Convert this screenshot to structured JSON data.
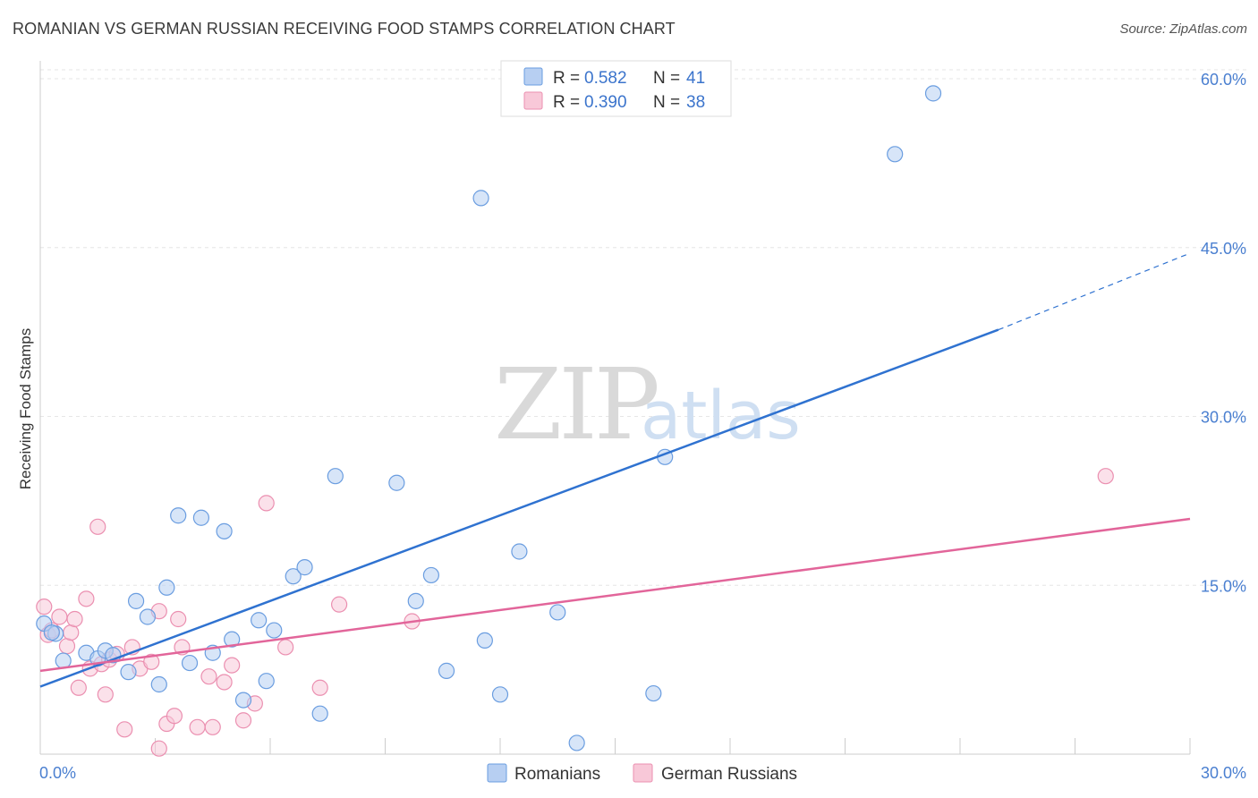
{
  "header": {
    "title": "ROMANIAN VS GERMAN RUSSIAN RECEIVING FOOD STAMPS CORRELATION CHART",
    "source": "Source: ZipAtlas.com"
  },
  "watermark": {
    "zip": "ZIP",
    "atlas": "atlas"
  },
  "chart_data": {
    "type": "scatter",
    "title": "ROMANIAN VS GERMAN RUSSIAN RECEIVING FOOD STAMPS CORRELATION CHART",
    "xlabel": "",
    "ylabel": "Receiving Food Stamps",
    "xlim": [
      0,
      30
    ],
    "ylim": [
      0,
      60
    ],
    "x_tick_labels": {
      "min": "0.0%",
      "max": "30.0%"
    },
    "y_ticks": [
      {
        "value": 15,
        "label": "15.0%"
      },
      {
        "value": 30,
        "label": "30.0%"
      },
      {
        "value": 45,
        "label": "45.0%"
      },
      {
        "value": 60,
        "label": "60.0%"
      }
    ],
    "legend": {
      "position": "top-center",
      "entries": [
        {
          "r_label": "R =",
          "r_value": "0.582",
          "n_label": "N =",
          "n_value": "41"
        },
        {
          "r_label": "R =",
          "r_value": "0.390",
          "n_label": "N =",
          "n_value": "38"
        }
      ]
    },
    "series": [
      {
        "name": "Romanians",
        "color": "#6a9de0",
        "fill": "#b7cff2",
        "trend": {
          "x0": 0,
          "y0": 6.0,
          "x1": 25,
          "y1": 37.7,
          "dash_to_x": 30,
          "dash_to_y": 44.5,
          "color": "#2f72d0"
        },
        "points": [
          {
            "x": 0.1,
            "y": 11.6
          },
          {
            "x": 0.4,
            "y": 10.7
          },
          {
            "x": 0.6,
            "y": 8.3
          },
          {
            "x": 1.2,
            "y": 9.0
          },
          {
            "x": 1.5,
            "y": 8.5
          },
          {
            "x": 1.7,
            "y": 9.2
          },
          {
            "x": 1.9,
            "y": 8.8
          },
          {
            "x": 2.3,
            "y": 7.3
          },
          {
            "x": 2.5,
            "y": 13.6
          },
          {
            "x": 2.8,
            "y": 12.2
          },
          {
            "x": 3.1,
            "y": 6.2
          },
          {
            "x": 3.3,
            "y": 14.8
          },
          {
            "x": 3.6,
            "y": 21.2
          },
          {
            "x": 3.9,
            "y": 8.1
          },
          {
            "x": 4.2,
            "y": 21.0
          },
          {
            "x": 4.5,
            "y": 9.0
          },
          {
            "x": 4.8,
            "y": 19.8
          },
          {
            "x": 5.0,
            "y": 10.2
          },
          {
            "x": 5.3,
            "y": 4.8
          },
          {
            "x": 5.7,
            "y": 11.9
          },
          {
            "x": 5.9,
            "y": 6.5
          },
          {
            "x": 6.1,
            "y": 11.0
          },
          {
            "x": 6.6,
            "y": 15.8
          },
          {
            "x": 6.9,
            "y": 16.6
          },
          {
            "x": 7.3,
            "y": 3.6
          },
          {
            "x": 7.7,
            "y": 24.7
          },
          {
            "x": 9.3,
            "y": 24.1
          },
          {
            "x": 9.8,
            "y": 13.6
          },
          {
            "x": 10.2,
            "y": 15.9
          },
          {
            "x": 10.6,
            "y": 7.4
          },
          {
            "x": 11.5,
            "y": 49.4
          },
          {
            "x": 11.6,
            "y": 10.1
          },
          {
            "x": 12.0,
            "y": 5.3
          },
          {
            "x": 12.5,
            "y": 18.0
          },
          {
            "x": 13.5,
            "y": 12.6
          },
          {
            "x": 14.0,
            "y": 1.0
          },
          {
            "x": 16.0,
            "y": 5.4
          },
          {
            "x": 16.3,
            "y": 26.4
          },
          {
            "x": 22.3,
            "y": 53.3
          },
          {
            "x": 23.3,
            "y": 58.7
          },
          {
            "x": 0.3,
            "y": 10.8
          }
        ]
      },
      {
        "name": "German Russians",
        "color": "#eb8fb0",
        "fill": "#f8c8d8",
        "trend": {
          "x0": 0,
          "y0": 7.4,
          "x1": 30,
          "y1": 20.9,
          "color": "#e2659a"
        },
        "points": [
          {
            "x": 0.1,
            "y": 13.1
          },
          {
            "x": 0.2,
            "y": 10.6
          },
          {
            "x": 0.5,
            "y": 12.2
          },
          {
            "x": 0.7,
            "y": 9.6
          },
          {
            "x": 0.8,
            "y": 10.8
          },
          {
            "x": 0.9,
            "y": 12.0
          },
          {
            "x": 1.0,
            "y": 5.9
          },
          {
            "x": 1.2,
            "y": 13.8
          },
          {
            "x": 1.3,
            "y": 7.6
          },
          {
            "x": 1.5,
            "y": 20.2
          },
          {
            "x": 1.6,
            "y": 8.0
          },
          {
            "x": 1.7,
            "y": 5.3
          },
          {
            "x": 1.8,
            "y": 8.4
          },
          {
            "x": 2.0,
            "y": 8.9
          },
          {
            "x": 2.2,
            "y": 2.2
          },
          {
            "x": 2.4,
            "y": 9.5
          },
          {
            "x": 2.6,
            "y": 7.6
          },
          {
            "x": 2.9,
            "y": 8.2
          },
          {
            "x": 3.1,
            "y": 0.5
          },
          {
            "x": 3.1,
            "y": 12.7
          },
          {
            "x": 3.3,
            "y": 2.7
          },
          {
            "x": 3.5,
            "y": 3.4
          },
          {
            "x": 3.6,
            "y": 12.0
          },
          {
            "x": 3.7,
            "y": 9.5
          },
          {
            "x": 4.1,
            "y": 2.4
          },
          {
            "x": 4.4,
            "y": 6.9
          },
          {
            "x": 4.5,
            "y": 2.4
          },
          {
            "x": 4.8,
            "y": 6.4
          },
          {
            "x": 5.0,
            "y": 7.9
          },
          {
            "x": 5.3,
            "y": 3.0
          },
          {
            "x": 5.6,
            "y": 4.5
          },
          {
            "x": 5.9,
            "y": 22.3
          },
          {
            "x": 6.4,
            "y": 9.5
          },
          {
            "x": 7.3,
            "y": 5.9
          },
          {
            "x": 7.8,
            "y": 13.3
          },
          {
            "x": 9.7,
            "y": 11.8
          },
          {
            "x": 27.8,
            "y": 24.7
          },
          {
            "x": 0.3,
            "y": 11.0
          }
        ]
      }
    ]
  }
}
